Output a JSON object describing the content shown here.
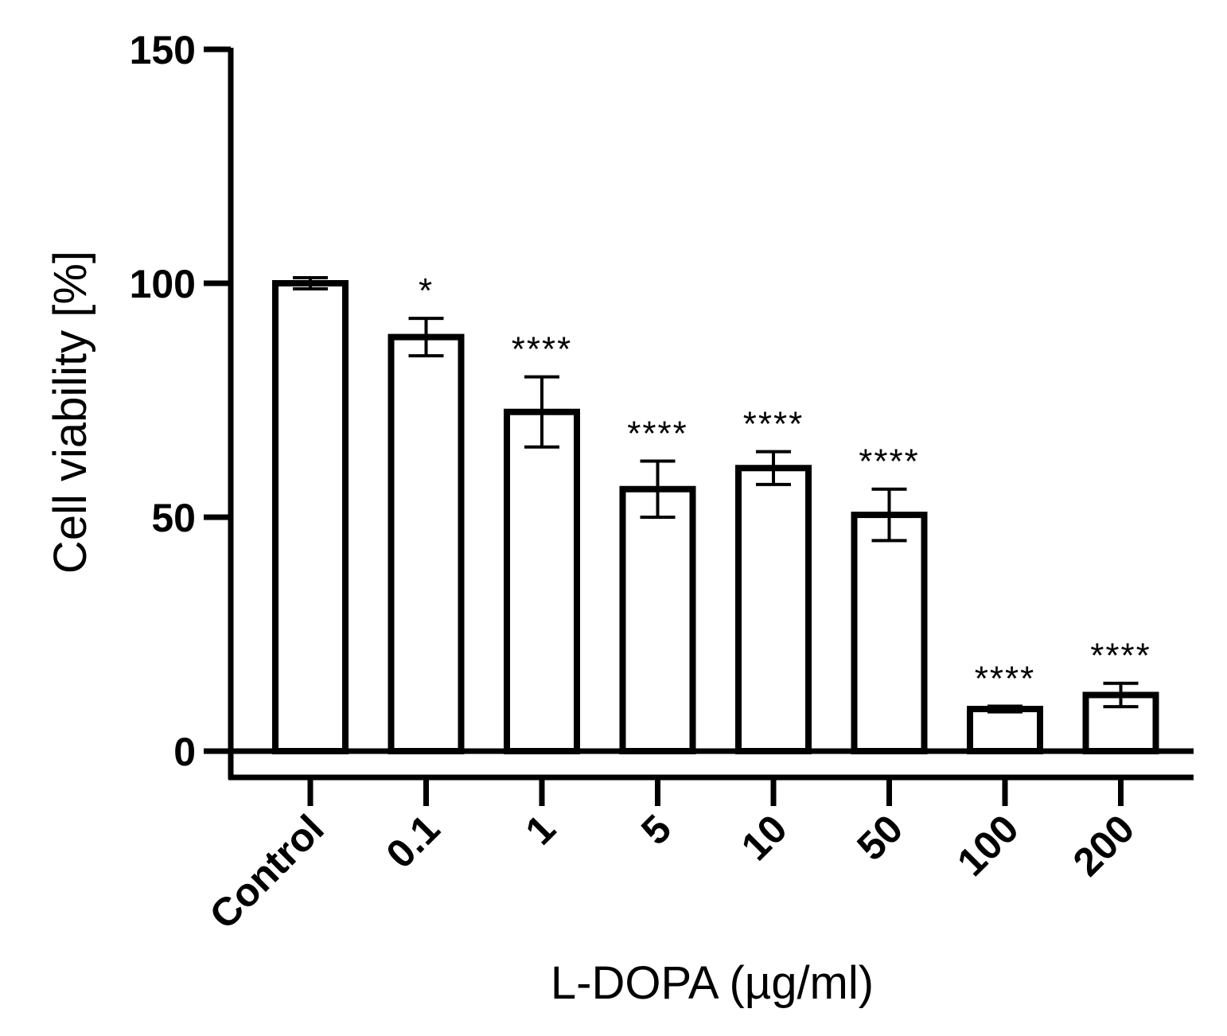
{
  "chart_data": {
    "type": "bar",
    "categories": [
      "Control",
      "0.1",
      "1",
      "5",
      "10",
      "50",
      "100",
      "200"
    ],
    "values": [
      100,
      88.5,
      72.5,
      56,
      60.5,
      50.5,
      9,
      12
    ],
    "error": [
      1.2,
      4,
      7.5,
      6,
      3.5,
      5.5,
      0.6,
      2.5
    ],
    "significance": [
      "",
      "*",
      "****",
      "****",
      "****",
      "****",
      "****",
      "****"
    ],
    "xlabel": "L-DOPA (µg/ml)",
    "ylabel": "Cell viability [%]",
    "ylim": [
      0,
      150
    ],
    "yticks": [
      "0",
      "50",
      "100",
      "150"
    ],
    "grid": false,
    "legend": "none",
    "colors": {
      "bar_fill": "#ffffff",
      "bar_stroke": "#000000",
      "error_bar": "#000000"
    }
  }
}
